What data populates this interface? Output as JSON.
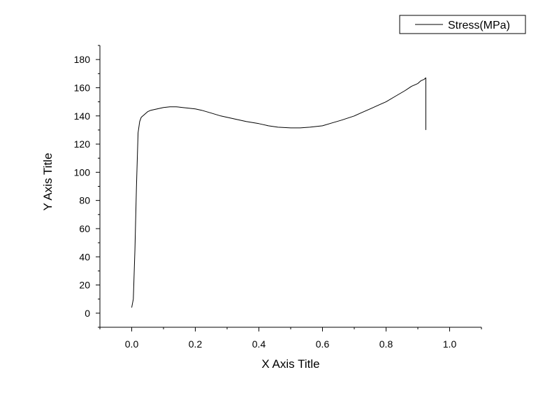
{
  "chart_data": {
    "type": "line",
    "xlabel": "X Axis Title",
    "ylabel": "Y Axis Title",
    "xlim": [
      -0.1,
      1.1
    ],
    "ylim": [
      -10,
      190
    ],
    "x_ticks": [
      0.0,
      0.2,
      0.4,
      0.6,
      0.8,
      1.0
    ],
    "x_tick_labels": [
      "0.0",
      "0.2",
      "0.4",
      "0.6",
      "0.8",
      "1.0"
    ],
    "y_ticks": [
      0,
      20,
      40,
      60,
      80,
      100,
      120,
      140,
      160,
      180
    ],
    "y_tick_labels": [
      "0",
      "20",
      "40",
      "60",
      "80",
      "100",
      "120",
      "140",
      "160",
      "180"
    ],
    "grid": false,
    "legend_position": "top-right",
    "series": [
      {
        "name": "Stress(MPa)",
        "color": "#000000",
        "x": [
          0.0,
          0.005,
          0.01,
          0.015,
          0.02,
          0.025,
          0.03,
          0.04,
          0.05,
          0.06,
          0.08,
          0.1,
          0.12,
          0.14,
          0.16,
          0.18,
          0.2,
          0.22,
          0.25,
          0.28,
          0.3,
          0.33,
          0.36,
          0.4,
          0.43,
          0.46,
          0.5,
          0.53,
          0.56,
          0.6,
          0.63,
          0.66,
          0.7,
          0.72,
          0.75,
          0.78,
          0.8,
          0.83,
          0.86,
          0.88,
          0.9,
          0.91,
          0.92,
          0.925,
          0.925
        ],
        "y": [
          4,
          10,
          45,
          90,
          128,
          136,
          139,
          141,
          143,
          144,
          145,
          146,
          146.5,
          146.5,
          146,
          145.5,
          145,
          144,
          142,
          140,
          139,
          137.5,
          136,
          134.5,
          133,
          132,
          131.5,
          131.5,
          132,
          133,
          135,
          137,
          140,
          142,
          145,
          148,
          150,
          154,
          158,
          161,
          163,
          165,
          166,
          167,
          130
        ]
      }
    ]
  }
}
